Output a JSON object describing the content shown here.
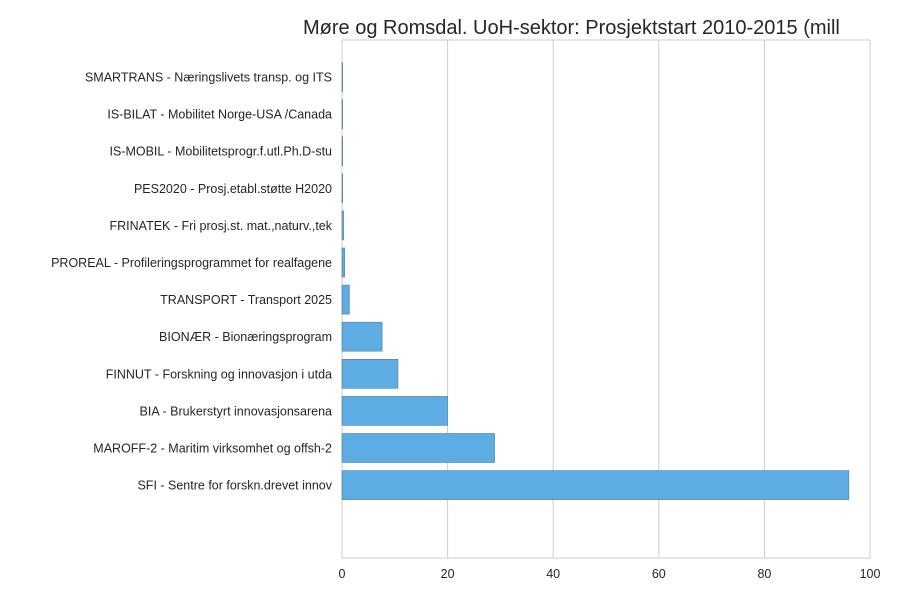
{
  "chart_data": {
    "type": "bar",
    "orientation": "horizontal",
    "title": "Møre og Romsdal. UoH-sektor: Prosjektstart 2010-2015 (mill",
    "xlabel": "",
    "ylabel": "",
    "xlim": [
      0,
      100
    ],
    "xticks": [
      "0",
      "20",
      "40",
      "60",
      "80",
      "100"
    ],
    "grid": "vertical",
    "bar_color": "#5dade2",
    "categories": [
      "SMARTRANS - Næringslivets transp. og ITS",
      "IS-BILAT - Mobilitet Norge-USA /Canada",
      "IS-MOBIL - Mobilitetsprogr.f.utl.Ph.D-stu",
      "PES2020 - Prosj.etabl.støtte H2020",
      "FRINATEK - Fri prosj.st. mat.,naturv.,tek",
      "PROREAL - Profileringsprogrammet for realfagene",
      "TRANSPORT - Transport 2025",
      "BIONÆR - Bionæringsprogram",
      "FINNUT - Forskning og innovasjon i utda",
      "BIA - Brukerstyrt innovasjonsarena",
      "MAROFF-2 - Maritim virksomhet og offsh-2",
      "SFI - Sentre for forskn.drevet innov"
    ],
    "values": [
      0.05,
      0.05,
      0.05,
      0.1,
      0.3,
      0.5,
      1.4,
      7.6,
      10.6,
      20.0,
      28.9,
      96.0
    ]
  }
}
